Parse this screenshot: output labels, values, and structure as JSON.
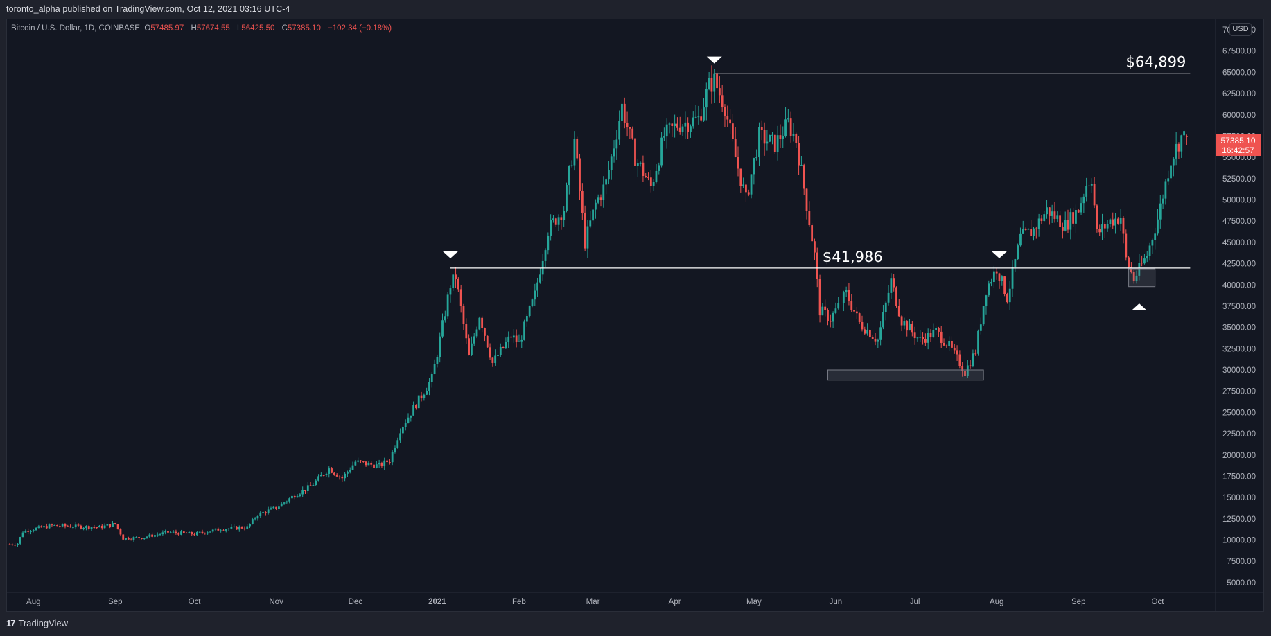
{
  "header": {
    "published_text": "toronto_alpha published on TradingView.com, Oct 12, 2021 03:16 UTC-4"
  },
  "legend": {
    "symbol": "Bitcoin / U.S. Dollar, 1D, COINBASE",
    "open_label": "O",
    "open": "57485.97",
    "high_label": "H",
    "high": "57674.55",
    "low_label": "L",
    "low": "56425.50",
    "close_label": "C",
    "close": "57385.10",
    "change": "−102.34 (−0.18%)"
  },
  "price_axis": {
    "currency_badge": "USD",
    "last_price": "57385.10",
    "countdown": "16:42:57"
  },
  "footer": {
    "brand_logo": "17",
    "brand_name": "TradingView"
  },
  "colors": {
    "up": "#26a69a",
    "down": "#ef5350",
    "background": "#131722",
    "frame": "#1f222c",
    "annotation": "#ffffff"
  },
  "chart_data": {
    "type": "candlestick",
    "title": "Bitcoin / U.S. Dollar, 1D, COINBASE",
    "xlabel": "",
    "ylabel": "USD",
    "ylim": [
      5000,
      70000
    ],
    "grid": false,
    "y_ticks": [
      "70000.00",
      "67500.00",
      "65000.00",
      "62500.00",
      "60000.00",
      "57500.00",
      "55000.00",
      "52500.00",
      "50000.00",
      "47500.00",
      "45000.00",
      "42500.00",
      "40000.00",
      "37500.00",
      "35000.00",
      "32500.00",
      "30000.00",
      "27500.00",
      "25000.00",
      "22500.00",
      "20000.00",
      "17500.00",
      "15000.00",
      "12500.00",
      "10000.00",
      "7500.00",
      "5000.00"
    ],
    "x_ticks": [
      {
        "label": "Aug",
        "day": 9
      },
      {
        "label": "Sep",
        "day": 40
      },
      {
        "label": "Oct",
        "day": 70
      },
      {
        "label": "Nov",
        "day": 101
      },
      {
        "label": "Dec",
        "day": 131
      },
      {
        "label": "2021",
        "day": 162
      },
      {
        "label": "Feb",
        "day": 193
      },
      {
        "label": "Mar",
        "day": 221
      },
      {
        "label": "Apr",
        "day": 252
      },
      {
        "label": "May",
        "day": 282
      },
      {
        "label": "Jun",
        "day": 313
      },
      {
        "label": "Jul",
        "day": 343
      },
      {
        "label": "Aug",
        "day": 374
      },
      {
        "label": "Sep",
        "day": 405
      },
      {
        "label": "Oct",
        "day": 435
      }
    ],
    "start_date": "2020-07-23",
    "end_date": "2021-10-12",
    "close_keyframes": [
      [
        0,
        9500
      ],
      [
        3,
        9600
      ],
      [
        5,
        11000
      ],
      [
        9,
        11300
      ],
      [
        16,
        11700
      ],
      [
        24,
        11600
      ],
      [
        34,
        11500
      ],
      [
        40,
        11900
      ],
      [
        43,
        10200
      ],
      [
        50,
        10300
      ],
      [
        60,
        10900
      ],
      [
        70,
        10700
      ],
      [
        80,
        11300
      ],
      [
        90,
        11500
      ],
      [
        94,
        13000
      ],
      [
        101,
        13800
      ],
      [
        108,
        15300
      ],
      [
        114,
        16300
      ],
      [
        121,
        18400
      ],
      [
        126,
        17300
      ],
      [
        131,
        19200
      ],
      [
        140,
        18700
      ],
      [
        144,
        19400
      ],
      [
        148,
        23000
      ],
      [
        155,
        26500
      ],
      [
        160,
        29000
      ],
      [
        162,
        32000
      ],
      [
        167,
        40000
      ],
      [
        169,
        41000
      ],
      [
        174,
        31500
      ],
      [
        178,
        36500
      ],
      [
        183,
        30800
      ],
      [
        190,
        34000
      ],
      [
        193,
        33100
      ],
      [
        199,
        38800
      ],
      [
        204,
        46500
      ],
      [
        210,
        49000
      ],
      [
        214,
        57000
      ],
      [
        218,
        45000
      ],
      [
        222,
        49500
      ],
      [
        226,
        52000
      ],
      [
        232,
        61000
      ],
      [
        237,
        55000
      ],
      [
        243,
        51500
      ],
      [
        248,
        57500
      ],
      [
        253,
        58800
      ],
      [
        261,
        59500
      ],
      [
        265,
        63400
      ],
      [
        267,
        64000
      ],
      [
        271,
        61000
      ],
      [
        275,
        55000
      ],
      [
        279,
        50000
      ],
      [
        284,
        57500
      ],
      [
        290,
        56500
      ],
      [
        295,
        59000
      ],
      [
        298,
        57000
      ],
      [
        302,
        49500
      ],
      [
        305,
        43500
      ],
      [
        307,
        37000
      ],
      [
        311,
        36000
      ],
      [
        317,
        39000
      ],
      [
        322,
        35500
      ],
      [
        329,
        33500
      ],
      [
        334,
        40500
      ],
      [
        338,
        35800
      ],
      [
        345,
        33500
      ],
      [
        351,
        34500
      ],
      [
        356,
        32800
      ],
      [
        362,
        29800
      ],
      [
        366,
        32200
      ],
      [
        370,
        39500
      ],
      [
        374,
        42000
      ],
      [
        378,
        38500
      ],
      [
        383,
        45500
      ],
      [
        388,
        46500
      ],
      [
        393,
        48800
      ],
      [
        400,
        47000
      ],
      [
        405,
        48900
      ],
      [
        408,
        51800
      ],
      [
        410,
        52700
      ],
      [
        412,
        46000
      ],
      [
        417,
        47500
      ],
      [
        421,
        48000
      ],
      [
        423,
        43000
      ],
      [
        426,
        40700
      ],
      [
        431,
        43500
      ],
      [
        435,
        47800
      ],
      [
        440,
        54800
      ],
      [
        444,
        57400
      ],
      [
        446,
        57385
      ]
    ],
    "annotations": [
      {
        "type": "horizontal_line",
        "price": 64899,
        "label": "$64,899",
        "from_day": 267,
        "to_day": 446
      },
      {
        "type": "horizontal_line",
        "price": 41986,
        "label": "$41,986",
        "from_day": 167,
        "to_day": 446
      },
      {
        "type": "marker_down",
        "day": 167,
        "price": 41986
      },
      {
        "type": "marker_down",
        "day": 267,
        "price": 64899
      },
      {
        "type": "marker_down",
        "day": 375,
        "price": 41986
      },
      {
        "type": "marker_up",
        "day": 428,
        "price": 37500
      },
      {
        "type": "rectangle",
        "from_day": 310,
        "to_day": 369,
        "price_top": 30000,
        "price_bottom": 28800
      },
      {
        "type": "rectangle",
        "from_day": 424,
        "to_day": 434,
        "price_top": 41900,
        "price_bottom": 39800
      }
    ],
    "last_candle": {
      "open": 57485.97,
      "high": 57674.55,
      "low": 56425.5,
      "close": 57385.1
    }
  }
}
